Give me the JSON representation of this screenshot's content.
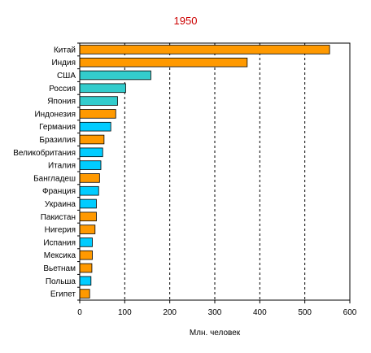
{
  "chart_data": {
    "type": "bar",
    "orientation": "horizontal",
    "title": "1950",
    "xlabel": "Млн. человек",
    "ylabel": "",
    "xlim": [
      0,
      600
    ],
    "xticks": [
      0,
      100,
      200,
      300,
      400,
      500,
      600
    ],
    "grid": "vertical dashed",
    "legend": "none",
    "categories": [
      "Китай",
      "Индия",
      "США",
      "Россия",
      "Япония",
      "Индонезия",
      "Германия",
      "Бразилия",
      "Великобритания",
      "Италия",
      "Бангладеш",
      "Франция",
      "Украина",
      "Пакистан",
      "Нигерия",
      "Испания",
      "Мексика",
      "Вьетнам",
      "Польша",
      "Египет"
    ],
    "values": [
      555,
      372,
      158,
      102,
      84,
      80,
      69,
      54,
      51,
      47,
      44,
      42,
      37,
      37,
      34,
      28,
      28,
      27,
      25,
      22
    ],
    "bar_colors": [
      "#ff9900",
      "#ff9900",
      "#33cccc",
      "#33cccc",
      "#33cccc",
      "#ff9900",
      "#00ccff",
      "#ff9900",
      "#00ccff",
      "#00ccff",
      "#ff9900",
      "#00ccff",
      "#00ccff",
      "#ff9900",
      "#ff9900",
      "#00ccff",
      "#ff9900",
      "#ff9900",
      "#00ccff",
      "#ff9900"
    ],
    "colors": {
      "title": "#cc0000",
      "orange": "#ff9900",
      "teal": "#33cccc",
      "blue": "#00ccff",
      "axis": "#000000"
    }
  }
}
